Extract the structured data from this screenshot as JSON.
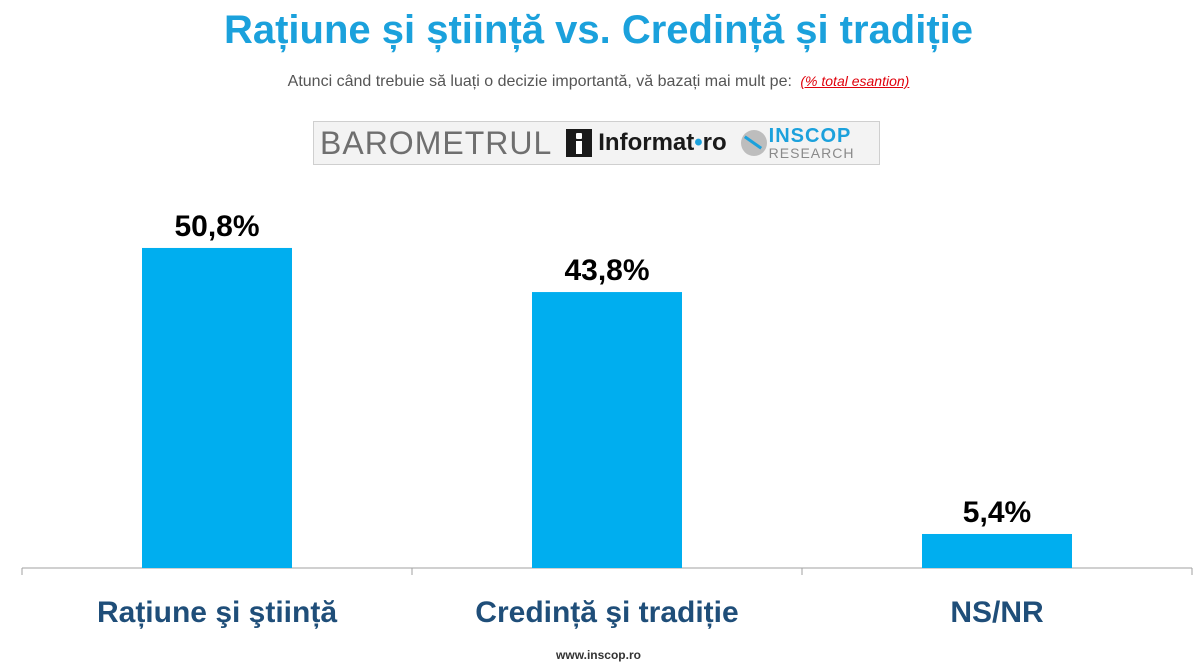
{
  "header": {
    "title": "Rațiune și știință vs. Credință și tradiție",
    "subtitle": "Atunci când trebuie să luați o decizie importantă, vă bazați mai mult pe:",
    "subtitle_note": "(% total esantion)"
  },
  "logos": {
    "barometrul": "BAROMETRUL",
    "informat_name": "Informat",
    "informat_dot": "•",
    "informat_tld": "ro",
    "inscop_name": "INSCOP",
    "inscop_sub": "RESEARCH"
  },
  "footer": {
    "url": "www.inscop.ro"
  },
  "colors": {
    "bar": "#00aeef",
    "title": "#1ba1dc",
    "category_label": "#1f4e79",
    "value_label": "#000000",
    "axis": "#a0a0a0"
  },
  "chart_data": {
    "type": "bar",
    "title": "Rațiune și știință vs. Credință și tradiție",
    "categories": [
      "Rațiune şi ştiință",
      "Credință şi tradiție",
      "NS/NR"
    ],
    "values": [
      50.8,
      43.8,
      5.4
    ],
    "value_labels": [
      "50,8%",
      "43,8%",
      "5,4%"
    ],
    "unit": "%",
    "ylim": [
      0,
      55
    ],
    "grid": false,
    "legend": "none"
  }
}
